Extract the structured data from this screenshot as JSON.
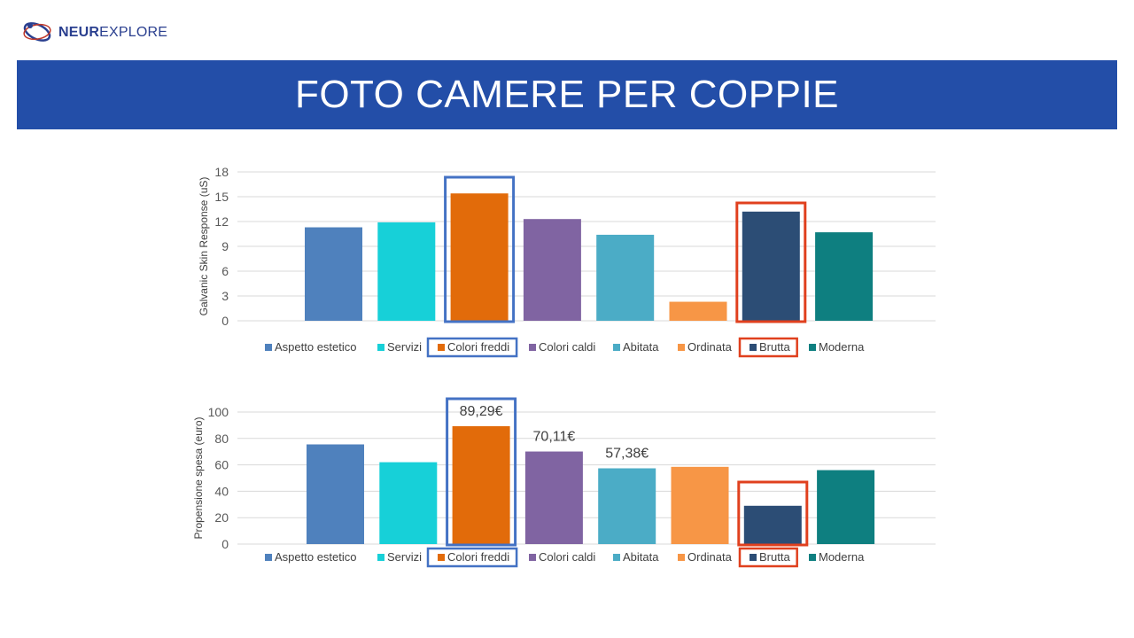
{
  "header": {
    "logo_text_bold": "NEUR",
    "logo_text_rest": "EXPLORE",
    "title": "FOTO CAMERE PER COPPIE"
  },
  "colors": {
    "banner": "#234ea8",
    "highlight_blue": "#4472c4",
    "highlight_red": "#e0401e",
    "grid": "#d9d9d9"
  },
  "chart_data": [
    {
      "type": "bar",
      "ylabel": "Galvanic Skin Response (uS)",
      "categories": [
        "Aspetto estetico",
        "Servizi",
        "Colori freddi",
        "Colori caldi",
        "Abitata",
        "Ordinata",
        "Brutta",
        "Moderna"
      ],
      "values": [
        11.3,
        11.9,
        15.4,
        12.3,
        10.4,
        2.3,
        13.2,
        10.7
      ],
      "colors": [
        "#4f81bd",
        "#17d0d8",
        "#e26b0a",
        "#8064a2",
        "#4bacc6",
        "#f79646",
        "#2c4d75",
        "#0e7f80"
      ],
      "ylim": [
        0,
        18
      ],
      "yticks": [
        "0",
        "3",
        "6",
        "9",
        "12",
        "15",
        "18"
      ],
      "grid": true,
      "legend": "bottom",
      "highlight_blue_category": "Colori freddi",
      "highlight_red_category": "Brutta"
    },
    {
      "type": "bar",
      "ylabel": "Propensione spesa (euro)",
      "categories": [
        "Aspetto estetico",
        "Servizi",
        "Colori freddi",
        "Colori caldi",
        "Abitata",
        "Ordinata",
        "Brutta",
        "Moderna"
      ],
      "values": [
        75.5,
        62,
        89.29,
        70.11,
        57.38,
        58.5,
        29,
        56
      ],
      "colors": [
        "#4f81bd",
        "#17d0d8",
        "#e26b0a",
        "#8064a2",
        "#4bacc6",
        "#f79646",
        "#2c4d75",
        "#0e7f80"
      ],
      "ylim": [
        0,
        100
      ],
      "yticks": [
        "0",
        "20",
        "40",
        "60",
        "80",
        "100"
      ],
      "data_labels": [
        "",
        "",
        "89,29€",
        "70,11€",
        "57,38€",
        "",
        "",
        ""
      ],
      "grid": true,
      "legend": "bottom",
      "highlight_blue_category": "Colori freddi",
      "highlight_red_category": "Brutta"
    }
  ]
}
